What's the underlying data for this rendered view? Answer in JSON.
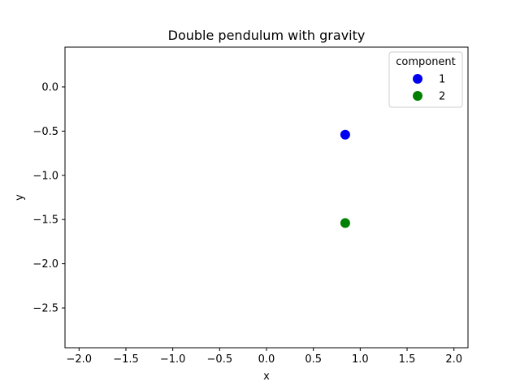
{
  "chart_data": {
    "type": "scatter",
    "title": "Double pendulum with gravity",
    "xlabel": "x",
    "ylabel": "y",
    "xlim": [
      -2.15,
      2.15
    ],
    "ylim": [
      -2.95,
      0.45
    ],
    "xticks": [
      -2.0,
      -1.5,
      -1.0,
      -0.5,
      0.0,
      0.5,
      1.0,
      1.5,
      2.0
    ],
    "xtick_labels": [
      "−2.0",
      "−1.5",
      "−1.0",
      "−0.5",
      "0.0",
      "0.5",
      "1.0",
      "1.5",
      "2.0"
    ],
    "yticks": [
      0.0,
      -0.5,
      -1.0,
      -1.5,
      -2.0,
      -2.5
    ],
    "ytick_labels": [
      "0.0",
      "−0.5",
      "−1.0",
      "−1.5",
      "−2.0",
      "−2.5"
    ],
    "grid": false,
    "legend": {
      "title": "component",
      "placement": "top-right"
    },
    "series": [
      {
        "name": "1",
        "color": "#0000ee",
        "points": [
          {
            "x": 0.84,
            "y": -0.54
          }
        ]
      },
      {
        "name": "2",
        "color": "#008000",
        "points": [
          {
            "x": 0.84,
            "y": -1.54
          }
        ]
      }
    ]
  }
}
